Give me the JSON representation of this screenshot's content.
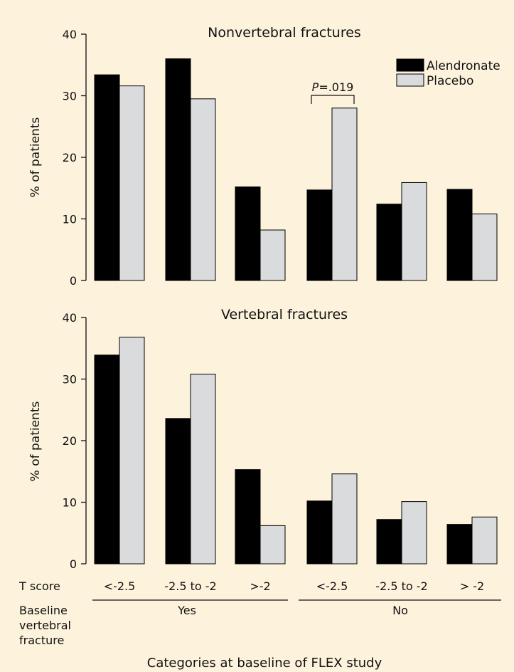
{
  "chart_data": [
    {
      "type": "bar",
      "title": "Nonvertebral fractures",
      "ylabel": "% of patients",
      "ylim": [
        0,
        40
      ],
      "yticks": [
        0,
        10,
        20,
        30,
        40
      ],
      "categories": [
        "<-2.5",
        "-2.5 to -2",
        ">-2",
        "<-2.5",
        "-2.5 to -2",
        "> -2"
      ],
      "series": [
        {
          "name": "Alendronate",
          "color": "#000000",
          "values": [
            33.4,
            36.0,
            15.2,
            14.7,
            12.4,
            14.8
          ]
        },
        {
          "name": "Placebo",
          "color": "#d9dbdc",
          "values": [
            31.6,
            29.5,
            8.2,
            28.0,
            15.9,
            10.8
          ]
        }
      ],
      "legend": "top-right",
      "annotation": {
        "italic": "P",
        "text": "=.019",
        "category_index": 3
      }
    },
    {
      "type": "bar",
      "title": "Vertebral fractures",
      "ylabel": "% of patients",
      "ylim": [
        0,
        40
      ],
      "yticks": [
        0,
        10,
        20,
        30,
        40
      ],
      "categories": [
        "<-2.5",
        "-2.5 to -2",
        ">-2",
        "<-2.5",
        "-2.5 to -2",
        "> -2"
      ],
      "series": [
        {
          "name": "Alendronate",
          "color": "#000000",
          "values": [
            33.9,
            23.6,
            15.3,
            10.2,
            7.2,
            6.4
          ]
        },
        {
          "name": "Placebo",
          "color": "#d9dbdc",
          "values": [
            36.8,
            30.8,
            6.2,
            14.6,
            10.1,
            7.6
          ]
        }
      ]
    }
  ],
  "x_table": {
    "t_score_label": "T score",
    "baseline_label_lines": [
      "Baseline",
      "vertebral",
      "fracture"
    ],
    "group_yes": "Yes",
    "group_no": "No",
    "xlabel": "Categories at baseline of FLEX study"
  },
  "colors": {
    "background": "#fdf2dc",
    "axis": "#111111"
  }
}
